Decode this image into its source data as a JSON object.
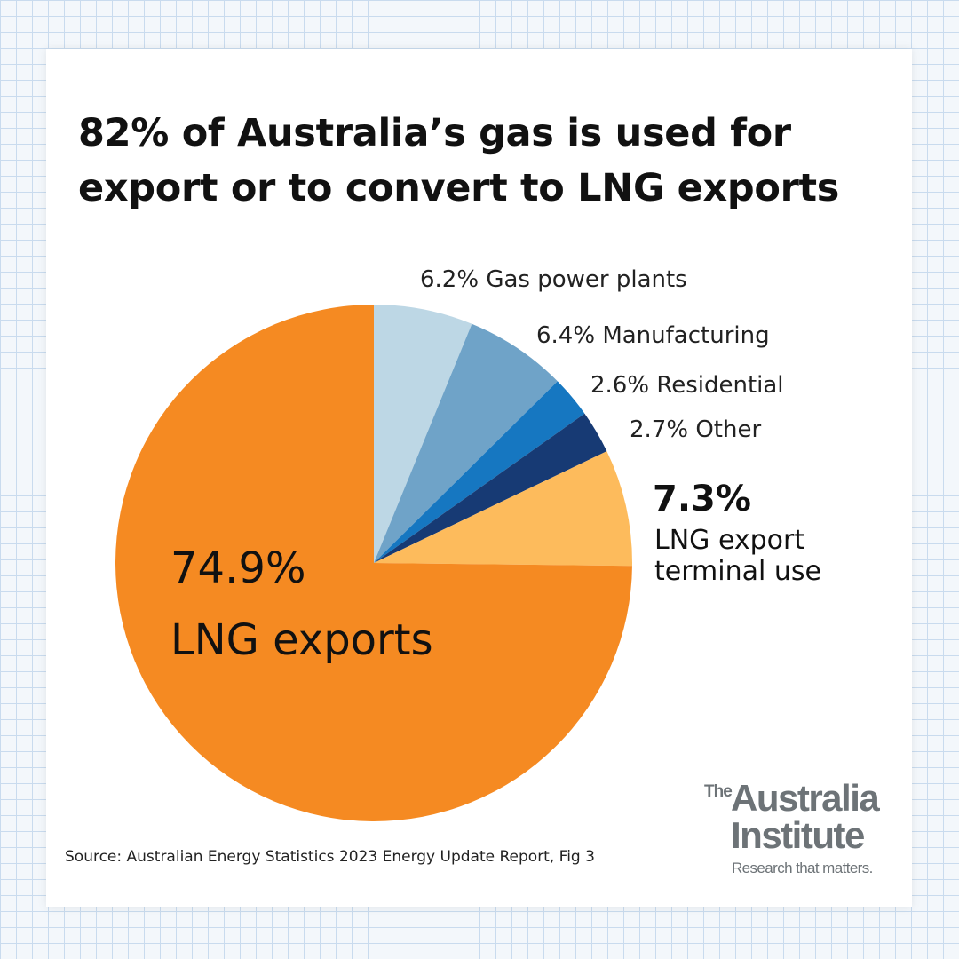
{
  "title_lines": [
    "82% of Australia’s gas is used for",
    "export or to convert to LNG exports"
  ],
  "source": "Source: Australian Energy Statistics 2023 Energy Update Report, Fig 3",
  "logo": {
    "the": "The",
    "line1": "Australia",
    "line2": "Institute",
    "tagline": "Research that matters."
  },
  "chart_data": {
    "type": "pie",
    "start_angle_deg": 0,
    "direction": "clockwise",
    "slices": [
      {
        "label": "Gas power plants",
        "value": 6.2,
        "display": "6.2% Gas power plants",
        "color": "#bdd7e5"
      },
      {
        "label": "Manufacturing",
        "value": 6.4,
        "display": "6.4% Manufacturing",
        "color": "#6fa3c8"
      },
      {
        "label": "Residential",
        "value": 2.6,
        "display": "2.6% Residential",
        "color": "#1677c1"
      },
      {
        "label": "Other",
        "value": 2.7,
        "display": "2.7% Other",
        "color": "#173a74"
      },
      {
        "label": "LNG export terminal use",
        "value": 7.3,
        "display_pct": "7.3%",
        "display_lines": [
          "LNG export",
          "terminal use"
        ],
        "color": "#fdbb5c"
      },
      {
        "label": "LNG exports",
        "value": 74.9,
        "display_pct": "74.9%",
        "display_lines": [
          "LNG exports"
        ],
        "color": "#f58a22"
      }
    ]
  }
}
